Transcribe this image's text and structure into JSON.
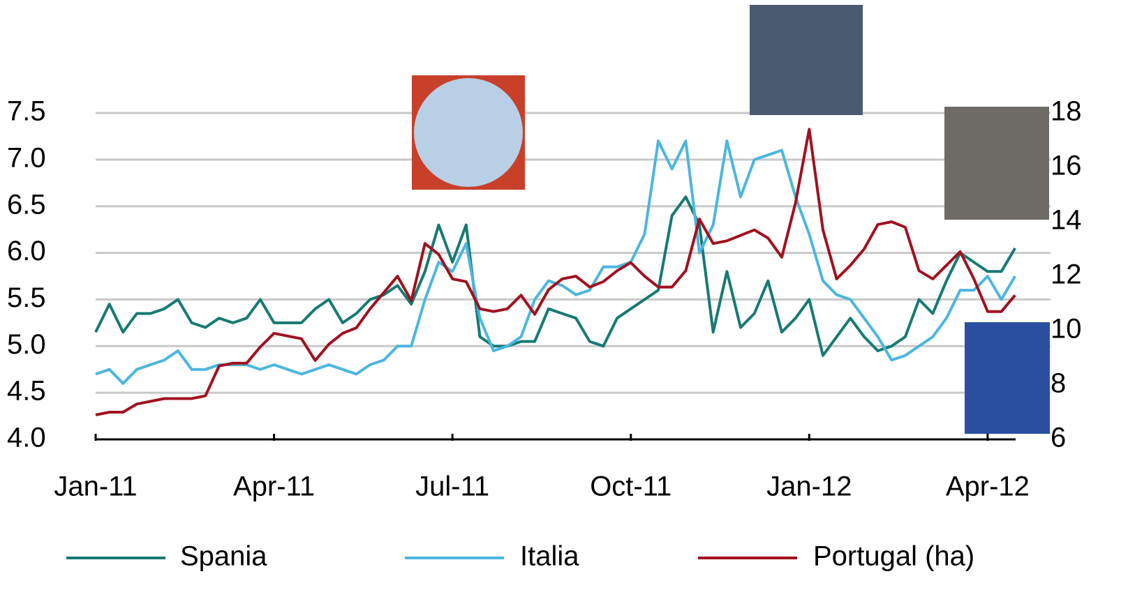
{
  "chart_data": {
    "type": "line",
    "categories": [
      "Jan-11",
      null,
      null,
      null,
      null,
      null,
      null,
      null,
      null,
      null,
      null,
      null,
      null,
      "Apr-11",
      null,
      null,
      null,
      null,
      null,
      null,
      null,
      null,
      null,
      null,
      null,
      null,
      "Jul-11",
      null,
      null,
      null,
      null,
      null,
      null,
      null,
      null,
      null,
      null,
      null,
      null,
      "Oct-11",
      null,
      null,
      null,
      null,
      null,
      null,
      null,
      null,
      null,
      null,
      null,
      null,
      "Jan-12",
      null,
      null,
      null,
      null,
      null,
      null,
      null,
      null,
      null,
      null,
      null,
      null,
      "Apr-12",
      null,
      null
    ],
    "series": [
      {
        "name": "Spania",
        "color": "#177a72",
        "values": [
          5.15,
          5.45,
          5.15,
          5.35,
          5.35,
          5.4,
          5.5,
          5.25,
          5.2,
          5.3,
          5.25,
          5.3,
          5.5,
          5.25,
          5.25,
          5.25,
          5.4,
          5.5,
          5.25,
          5.35,
          5.5,
          5.55,
          5.65,
          5.45,
          5.8,
          6.3,
          5.9,
          6.3,
          5.1,
          5.0,
          5.0,
          5.05,
          5.05,
          5.4,
          5.35,
          5.3,
          5.05,
          5.0,
          5.3,
          5.4,
          5.5,
          5.6,
          6.4,
          6.6,
          6.3,
          5.15,
          5.8,
          5.2,
          5.35,
          5.7,
          5.15,
          5.3,
          5.5,
          4.9,
          5.1,
          5.3,
          5.1,
          4.95,
          5.0,
          5.1,
          5.5,
          5.35,
          5.7,
          6.0,
          5.9,
          5.8,
          5.8,
          6.05
        ]
      },
      {
        "name": "Italia",
        "color": "#4cb6df",
        "values": [
          4.7,
          4.75,
          4.6,
          4.75,
          4.8,
          4.85,
          4.95,
          4.75,
          4.75,
          4.8,
          4.8,
          4.8,
          4.75,
          4.8,
          4.75,
          4.7,
          4.75,
          4.8,
          4.75,
          4.7,
          4.8,
          4.85,
          5.0,
          5.0,
          5.5,
          5.9,
          5.8,
          6.1,
          5.3,
          4.95,
          5.0,
          5.1,
          5.5,
          5.7,
          5.65,
          5.55,
          5.6,
          5.85,
          5.85,
          5.9,
          6.2,
          7.2,
          6.9,
          7.2,
          6.0,
          6.3,
          7.2,
          6.6,
          7.0,
          7.05,
          7.1,
          6.6,
          6.2,
          5.7,
          5.55,
          5.5,
          5.3,
          5.1,
          4.85,
          4.9,
          5.0,
          5.1,
          5.3,
          5.6,
          5.6,
          5.75,
          5.5,
          5.75
        ]
      },
      {
        "name": "Portugal (ha)",
        "color": "#a0111f",
        "axis": "y2",
        "values": [
          6.9,
          7.0,
          7.0,
          7.3,
          7.4,
          7.5,
          7.5,
          7.5,
          7.6,
          8.7,
          8.8,
          8.8,
          9.4,
          9.9,
          9.8,
          9.7,
          8.9,
          9.5,
          9.9,
          10.1,
          10.8,
          11.4,
          12.0,
          11.1,
          13.2,
          12.8,
          11.9,
          11.8,
          10.8,
          10.7,
          10.8,
          11.3,
          10.6,
          11.5,
          11.9,
          12.0,
          11.6,
          11.8,
          12.2,
          12.5,
          12.0,
          11.6,
          11.6,
          12.2,
          14.1,
          13.2,
          13.3,
          13.5,
          13.7,
          13.4,
          12.7,
          14.7,
          17.4,
          13.7,
          11.9,
          12.4,
          13.0,
          13.9,
          14.0,
          13.8,
          12.2,
          11.9,
          12.4,
          12.9,
          11.9,
          10.7,
          10.7,
          11.3
        ]
      }
    ],
    "ylim": [
      4,
      7.5
    ],
    "yticks": [
      {
        "value": 4,
        "label": "4.0"
      },
      4.5,
      {
        "value": 5,
        "label": "5.0"
      },
      5.5,
      {
        "value": 6,
        "label": "6.0"
      },
      6.5,
      {
        "value": 7,
        "label": "7.0"
      },
      7.5
    ],
    "y2lim": [
      6,
      18
    ],
    "y2ticks": [
      6,
      8,
      10,
      12,
      14,
      16,
      18
    ],
    "grid": true,
    "legend": "bottom"
  }
}
